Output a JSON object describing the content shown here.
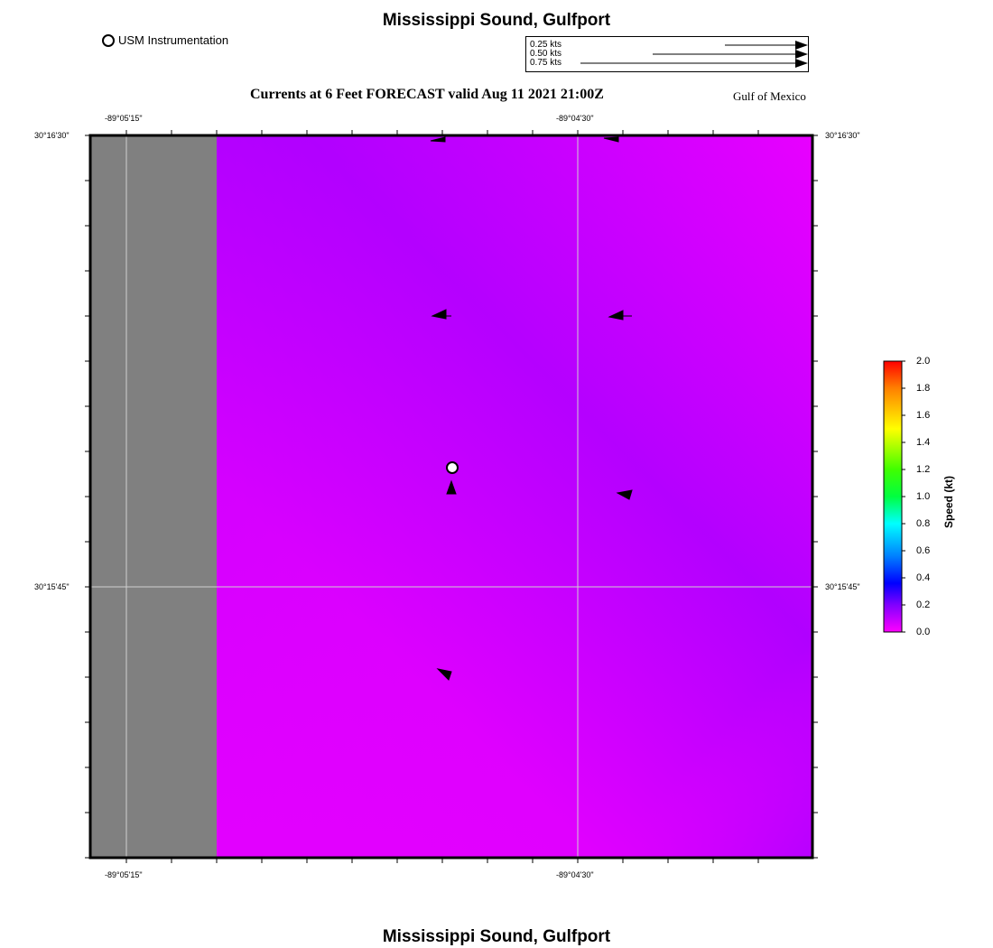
{
  "header": {
    "title": "Mississippi Sound, Gulfport",
    "instrument_legend": "USM Instrumentation",
    "subtitle": "Currents at 6 Feet FORECAST valid Aug 11 2021 21:00Z",
    "region": "Gulf of Mexico"
  },
  "scale_legend": {
    "entries": [
      {
        "label": "0.25 kts",
        "speed": 0.25
      },
      {
        "label": "0.50 kts",
        "speed": 0.5
      },
      {
        "label": "0.75 kts",
        "speed": 0.75
      }
    ]
  },
  "axes": {
    "lon_ticks": [
      "-89°05'15\"",
      "-89°04'30\""
    ],
    "lat_ticks": [
      "30°16'30\"",
      "30°15'45\""
    ]
  },
  "colorbar": {
    "title": "Speed (kt)",
    "ticks": [
      "2.0",
      "1.8",
      "1.6",
      "1.4",
      "1.2",
      "1.0",
      "0.8",
      "0.6",
      "0.4",
      "0.2",
      "0.0"
    ],
    "stops": [
      "#ff0000",
      "#ff8000",
      "#ffff00",
      "#80ff00",
      "#00ff00",
      "#00ff80",
      "#00ffff",
      "#0080ff",
      "#0000ff",
      "#8000ff",
      "#ff00ff"
    ]
  },
  "map": {
    "land_color": "#808080",
    "water_colors": [
      "#b000ff",
      "#e000ff"
    ],
    "grid_color": "#c8c8c8"
  },
  "footer": {
    "title": "Mississippi Sound, Gulfport"
  }
}
